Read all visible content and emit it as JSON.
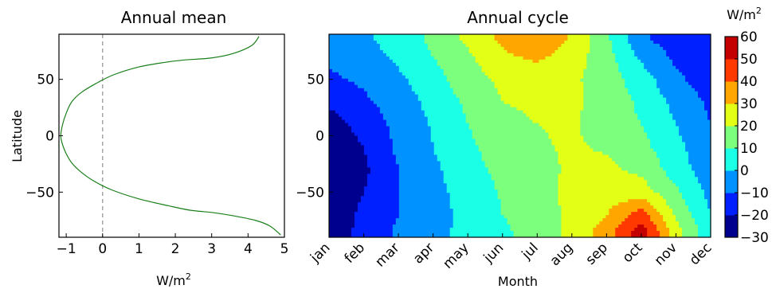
{
  "chart_data": [
    {
      "type": "line",
      "title": "Annual mean",
      "xlabel": "W/m",
      "xlabel_superscript": "2",
      "ylabel": "Latitude",
      "xlim": [
        -1.2,
        5
      ],
      "ylim": [
        -90,
        90
      ],
      "xticks": [
        -1,
        0,
        1,
        2,
        3,
        4,
        5
      ],
      "yticks": [
        -50,
        0,
        50
      ],
      "reference_line": {
        "x": 0,
        "style": "dashed",
        "color": "#999999"
      },
      "series": [
        {
          "color": "#1a7f1a",
          "x": [
            4.3,
            4.1,
            3.6,
            3.0,
            2.2,
            1.7,
            1.0,
            0.3,
            -0.2,
            -0.6,
            -0.85,
            -1.0,
            -1.1,
            -1.15,
            -1.1,
            -1.0,
            -0.85,
            -0.6,
            -0.25,
            0.25,
            1.0,
            1.8,
            2.4,
            3.0,
            3.6,
            4.2,
            4.6,
            4.9
          ],
          "y": [
            88,
            80,
            73,
            69,
            67,
            65,
            61,
            54,
            46,
            38,
            30,
            20,
            10,
            0,
            -8,
            -16,
            -24,
            -32,
            -40,
            -48,
            -56,
            -62,
            -66,
            -68,
            -71,
            -75,
            -80,
            -88
          ]
        }
      ]
    },
    {
      "type": "heatmap",
      "title": "Annual cycle",
      "xlabel": "Month",
      "ylabel": "",
      "categories": [
        "jan",
        "feb",
        "mar",
        "apr",
        "may",
        "jun",
        "jul",
        "aug",
        "sep",
        "oct",
        "nov",
        "dec"
      ],
      "ylim": [
        -90,
        90
      ],
      "yticks": [
        -50,
        0,
        50
      ],
      "colorbar": {
        "label": "W/m",
        "label_superscript": "2",
        "levels": [
          -30,
          -20,
          -10,
          0,
          10,
          20,
          30,
          40,
          50,
          60
        ],
        "ticks": [
          60,
          50,
          40,
          30,
          20,
          10,
          0,
          -10,
          -20,
          -30
        ],
        "colors": [
          "#00008f",
          "#0020ff",
          "#0092ff",
          "#1affe5",
          "#7cff7d",
          "#e3ff16",
          "#ffa700",
          "#ff3900",
          "#c40000"
        ]
      },
      "latitudes": [
        85,
        70,
        50,
        30,
        10,
        -10,
        -30,
        -50,
        -70,
        -85
      ],
      "values": [
        [
          -5,
          -2,
          5,
          12,
          22,
          32,
          40,
          28,
          12,
          -8,
          -15,
          -12
        ],
        [
          -8,
          -5,
          2,
          10,
          18,
          28,
          32,
          25,
          14,
          -2,
          -12,
          -15
        ],
        [
          -12,
          -8,
          -2,
          6,
          16,
          22,
          24,
          22,
          15,
          5,
          -8,
          -15
        ],
        [
          -18,
          -12,
          -5,
          3,
          12,
          20,
          22,
          22,
          16,
          8,
          -3,
          -12
        ],
        [
          -25,
          -16,
          -7,
          1,
          10,
          17,
          20,
          21,
          16,
          10,
          0,
          -10
        ],
        [
          -28,
          -20,
          -8,
          0,
          8,
          15,
          19,
          21,
          19,
          13,
          3,
          -8
        ],
        [
          -30,
          -22,
          -10,
          -2,
          6,
          13,
          18,
          21,
          22,
          18,
          5,
          -6
        ],
        [
          -28,
          -20,
          -10,
          -3,
          4,
          11,
          17,
          22,
          24,
          25,
          12,
          -3
        ],
        [
          -26,
          -18,
          -10,
          -4,
          3,
          10,
          16,
          22,
          30,
          45,
          18,
          0
        ],
        [
          -24,
          -18,
          -8,
          -2,
          2,
          8,
          15,
          22,
          35,
          55,
          25,
          2
        ]
      ]
    }
  ]
}
